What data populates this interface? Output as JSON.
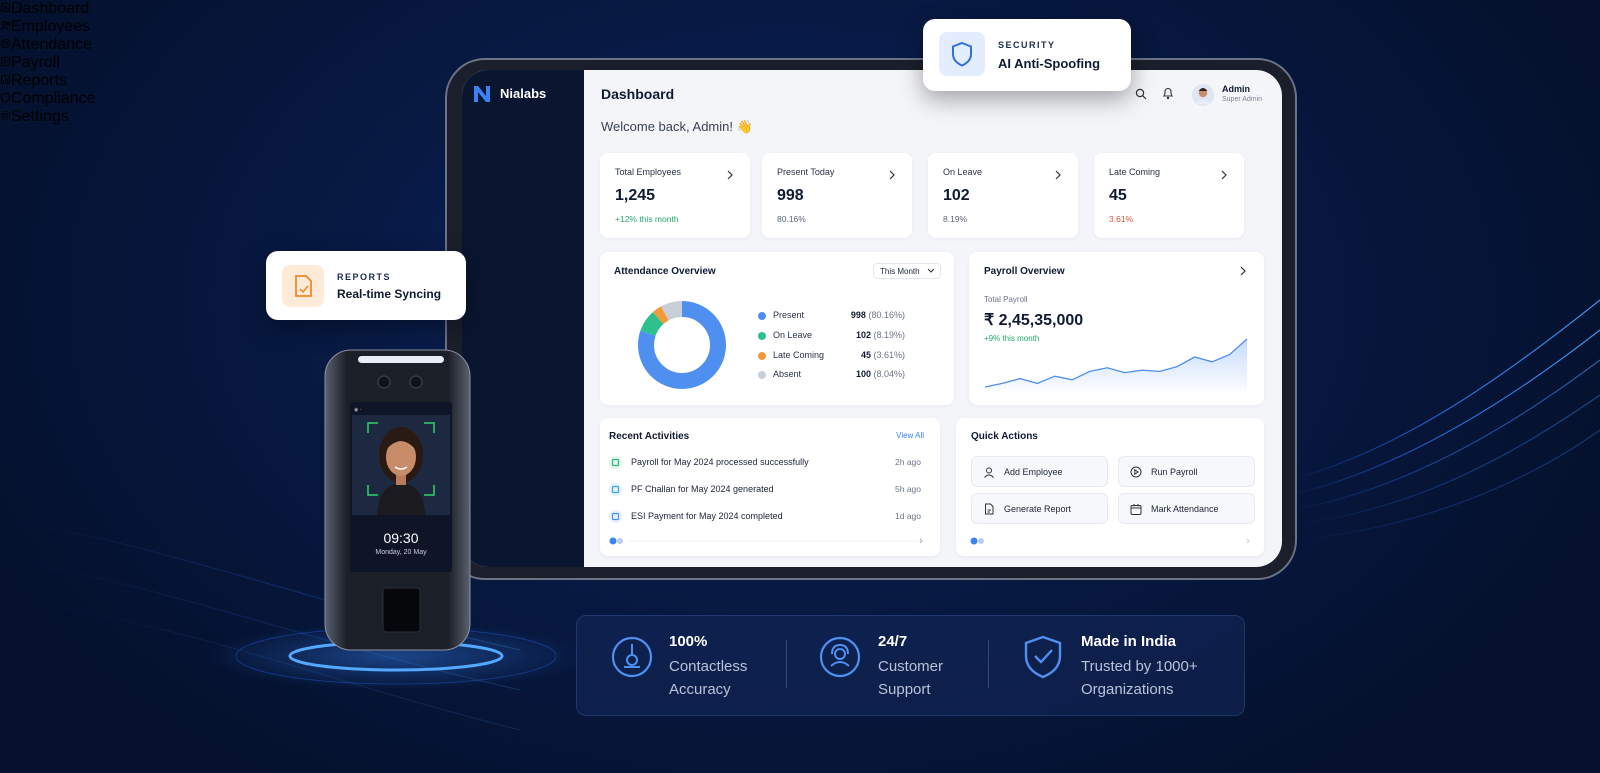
{
  "badges": {
    "security": {
      "eyebrow": "SECURITY",
      "title": "AI Anti-Spoofing"
    },
    "reports": {
      "eyebrow": "REPORTS",
      "title": "Real-time Syncing"
    }
  },
  "sidebar": {
    "brand": "Nialabs",
    "menu": [
      "Dashboard",
      "Employees",
      "Attendance",
      "Payroll",
      "Reports",
      "Compliance",
      "Settings"
    ]
  },
  "header": {
    "title": "Dashboard",
    "user": "Admin",
    "role": "Super Admin",
    "welcome": "Welcome back, Admin! 👋"
  },
  "stats": [
    {
      "label": "Total Employees",
      "value": "1,245",
      "note": "+12% this month"
    },
    {
      "label": "Present Today",
      "value": "998",
      "note": "80.16%"
    },
    {
      "label": "On Leave",
      "value": "102",
      "note": "8.19%"
    },
    {
      "label": "Late Coming",
      "value": "45",
      "note": "3.61%"
    }
  ],
  "attendance": {
    "title": "Attendance Overview",
    "period": "This Month",
    "items": [
      {
        "name": "Present",
        "value": 998,
        "percent": "(80.16%)",
        "color": "#4f8ff0"
      },
      {
        "name": "On Leave",
        "value": 102,
        "percent": "(8.19%)",
        "color": "#2fc08e"
      },
      {
        "name": "Late Coming",
        "value": 45,
        "percent": "(3.61%)",
        "color": "#f29a3a"
      },
      {
        "name": "Absent",
        "value": 100,
        "percent": "(8.04%)",
        "color": "#c9cfd8"
      }
    ]
  },
  "payroll": {
    "title": "Payroll Overview",
    "label": "Total Payroll",
    "amount": "₹ 2,45,35,000",
    "change": "+9% this month",
    "trend": [
      10,
      13,
      17,
      13,
      19,
      16,
      23,
      26,
      22,
      24,
      23,
      27,
      35,
      31,
      37,
      50
    ]
  },
  "activities": {
    "title": "Recent Activities",
    "link": "View All",
    "items": [
      {
        "text": "Payroll for May 2024 processed successfully",
        "time": "2h ago"
      },
      {
        "text": "PF Challan for May 2024 generated",
        "time": "5h ago"
      },
      {
        "text": "ESI Payment for May 2024 completed",
        "time": "1d ago"
      }
    ]
  },
  "quick_actions": {
    "title": "Quick Actions",
    "items": [
      "Add Employee",
      "Run Payroll",
      "Generate Report",
      "Mark Attendance"
    ]
  },
  "device": {
    "time": "09:30",
    "date": "Monday, 20 May"
  },
  "features": [
    {
      "title": "100%",
      "lines": [
        "Contactless",
        "Accuracy"
      ]
    },
    {
      "title": "24/7",
      "lines": [
        "Customer",
        "Support"
      ]
    },
    {
      "title": "Made in India",
      "lines": [
        "Trusted by 1000+",
        "Organizations"
      ]
    }
  ]
}
